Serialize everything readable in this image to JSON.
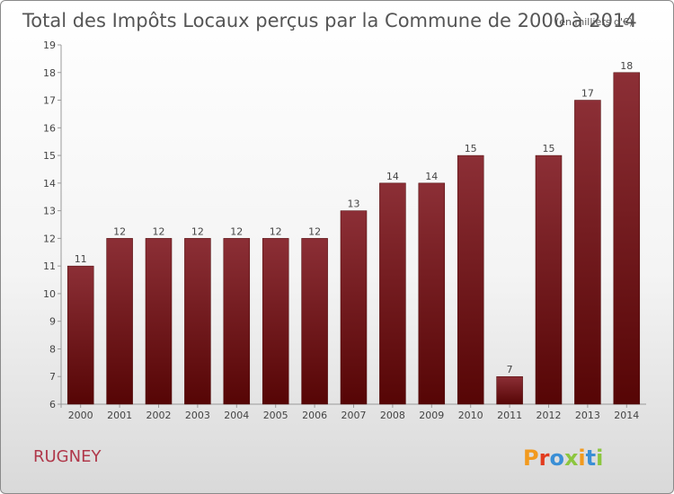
{
  "chart_data": {
    "type": "bar",
    "title": "Total des Impôts Locaux perçus par la Commune de 2000 à 2014",
    "unit": "(en milliers d'€)",
    "categories": [
      "2000",
      "2001",
      "2002",
      "2003",
      "2004",
      "2005",
      "2006",
      "2007",
      "2008",
      "2009",
      "2010",
      "2011",
      "2012",
      "2013",
      "2014"
    ],
    "values": [
      11,
      12,
      12,
      12,
      12,
      12,
      12,
      13,
      14,
      14,
      15,
      7,
      15,
      17,
      18
    ],
    "ylim": [
      6,
      19
    ],
    "yticks": [
      6,
      7,
      8,
      9,
      10,
      11,
      12,
      13,
      14,
      15,
      16,
      17,
      18,
      19
    ],
    "xlabel": "",
    "ylabel": "",
    "grid": false,
    "bar_color_top": "#8c2f36",
    "bar_color_bottom": "#560505"
  },
  "commune": "RUGNEY",
  "brand": "Proxiti",
  "colors": {
    "commune_text": "#b0384a",
    "brand_letters": [
      "#f29a1e",
      "#e23c1f",
      "#3a8fd6",
      "#8cc63f",
      "#f29a1e",
      "#3a8fd6",
      "#8cc63f"
    ]
  }
}
